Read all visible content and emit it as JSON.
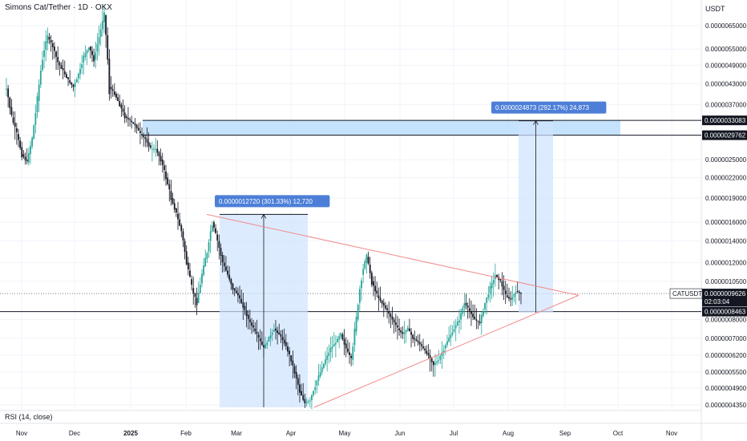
{
  "header": {
    "title": "Simons Cat/Tether · 1D · OKX"
  },
  "axis": {
    "unit": "USDT"
  },
  "indicator": {
    "label": "RSI (14, close)"
  },
  "colors": {
    "up": "#26a69a",
    "down": "#131722",
    "zone": "#bbdefb",
    "measure": "#2962ff",
    "trend": "#f28b8b",
    "label_dark": "#131722",
    "measure_bg": "#4d7fd8"
  },
  "chart_data": {
    "type": "candlestick",
    "y_ticks": [
      "0.0000065000",
      "0.0000055000",
      "0.0000049000",
      "0.0000043000",
      "0.0000037000",
      "0.0000029762",
      "0.0000025000",
      "0.0000022000",
      "0.0000019000",
      "0.0000016000",
      "0.0000014000",
      "0.0000012000",
      "0.0000010500",
      "0.0000008000",
      "0.0000007000",
      "0.0000006200",
      "0.0000005500",
      "0.0000004900",
      "0.0000004350"
    ],
    "x_ticks": [
      "Nov",
      "Dec",
      "2025",
      "Feb",
      "Mar",
      "Apr",
      "May",
      "Jun",
      "Jul",
      "Aug",
      "Sep",
      "Oct",
      "Nov"
    ],
    "price_labels": [
      {
        "symbol": "",
        "value": "0.0000033083",
        "style": "dark"
      },
      {
        "symbol": "",
        "value": "0.0000029762",
        "style": "dark"
      },
      {
        "symbol": "CATUSDT",
        "value": "0.0000009626",
        "countdown": "02:03:04",
        "style": "dark"
      },
      {
        "symbol": "",
        "value": "0.0000008463",
        "style": "dark"
      }
    ],
    "resistance_zone": {
      "low": 2.9762e-06,
      "high": 3.3083e-06
    },
    "support_level": 8.463e-07,
    "current_price": 9.626e-07,
    "measurements": [
      {
        "label": "0.0000012720 (301.33%) 12,720",
        "from": 4.2e-07,
        "to": 1.692e-06
      },
      {
        "label": "0.0000024873 (292.17%) 24,873",
        "from": 8.4e-07,
        "to": 3.3e-06
      }
    ],
    "triangle": {
      "upper": [
        1.692e-06,
        9.5e-07
      ],
      "lower": [
        4.25e-07,
        9.5e-07
      ]
    },
    "series_close": [
      4.15e-06,
      3.38e-06,
      3e-06,
      2.6e-06,
      2.45e-06,
      2.9e-06,
      3.8e-06,
      5.2e-06,
      6e-06,
      5.6e-06,
      5e-06,
      4.7e-06,
      4.4e-06,
      4.2e-06,
      4.6e-06,
      5.2e-06,
      5.6e-06,
      5.1e-06,
      6e-06,
      7e-06,
      4.2e-06,
      4e-06,
      3.7e-06,
      3.4e-06,
      3.3e-06,
      3.2e-06,
      3e-06,
      2.9e-06,
      2.7e-06,
      2.7e-06,
      2.5e-06,
      2.2e-06,
      1.9e-06,
      1.7e-06,
      1.5e-06,
      1.2e-06,
      1e-06,
      9e-07,
      1.1e-06,
      1.3e-06,
      1.6e-06,
      1.4e-06,
      1.2e-06,
      1.1e-06,
      1e-06,
      9.5e-07,
      8.8e-07,
      8e-07,
      7.5e-07,
      7e-07,
      6.5e-07,
      7e-07,
      7.5e-07,
      7.2e-07,
      6.8e-07,
      6.2e-07,
      5.5e-07,
      4.8e-07,
      4.4e-07,
      4.5e-07,
      5e-07,
      5.5e-07,
      6e-07,
      6.5e-07,
      6.8e-07,
      7.2e-07,
      6.5e-07,
      6e-07,
      8e-07,
      1.1e-06,
      1.25e-06,
      1.05e-06,
      9.5e-07,
      9e-07,
      8.5e-07,
      8e-07,
      7.5e-07,
      7.2e-07,
      7.5e-07,
      7e-07,
      6.8e-07,
      6.5e-07,
      6.2e-07,
      5.8e-07,
      6e-07,
      6.5e-07,
      7e-07,
      7.5e-07,
      8e-07,
      9e-07,
      8.5e-07,
      8e-07,
      7.8e-07,
      9e-07,
      1e-06,
      1.1e-06,
      1.05e-06,
      9.5e-07,
      9.2e-07,
      9.8e-07,
      9.6e-07
    ]
  }
}
